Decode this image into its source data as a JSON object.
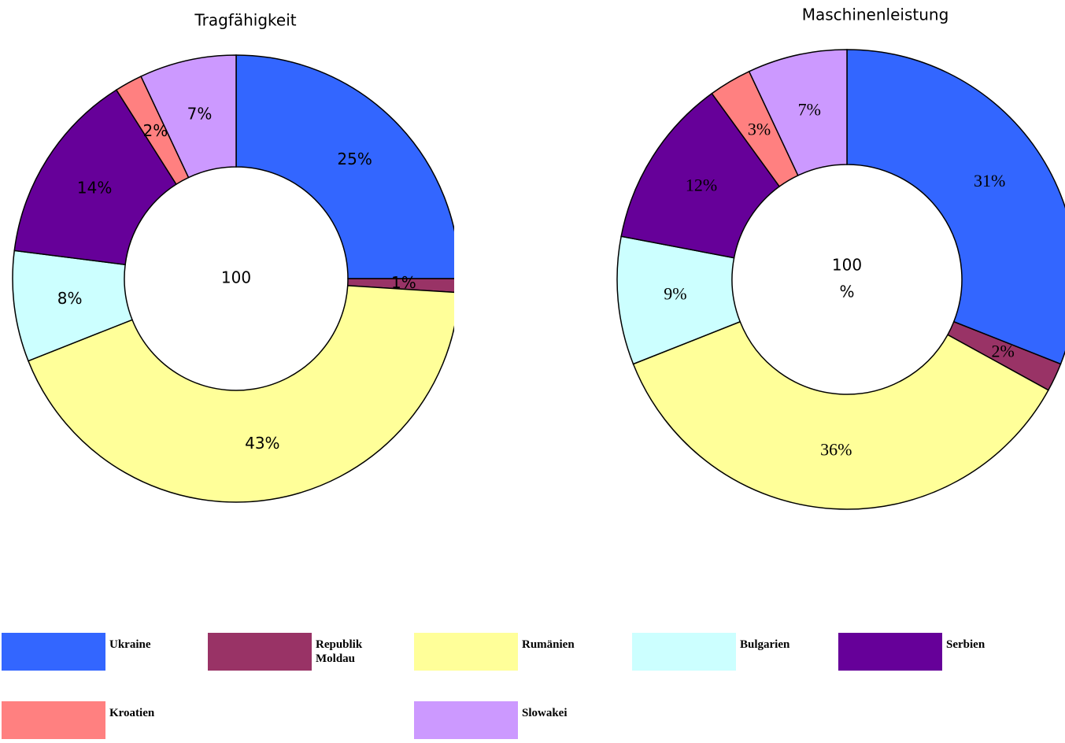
{
  "chart_data": [
    {
      "type": "donut",
      "title": "Tragfähigkeit",
      "center_label": [
        "100"
      ],
      "categories": [
        "Ukraine",
        "Republik Moldau",
        "Rumänien",
        "Bulgarien",
        "Serbien",
        "Kroatien",
        "Slowakei"
      ],
      "values": [
        25,
        1,
        43,
        8,
        14,
        2,
        7
      ],
      "value_labels": [
        "25%",
        "1%",
        "43%",
        "8%",
        "14%",
        "2%",
        "7%"
      ],
      "colors": [
        "#3366ff",
        "#993366",
        "#ffff99",
        "#ccffff",
        "#660099",
        "#ff8080",
        "#cc99ff"
      ]
    },
    {
      "type": "donut",
      "title": "Maschinenleistung",
      "center_label": [
        "100",
        "%"
      ],
      "categories": [
        "Ukraine",
        "Republik Moldau",
        "Rumänien",
        "Bulgarien",
        "Serbien",
        "Kroatien",
        "Slowakei"
      ],
      "values": [
        31,
        2,
        36,
        9,
        12,
        3,
        7
      ],
      "value_labels": [
        "31%",
        "2%",
        "36%",
        "9%",
        "12%",
        "3%",
        "7%"
      ],
      "colors": [
        "#3366ff",
        "#993366",
        "#ffff99",
        "#ccffff",
        "#660099",
        "#ff8080",
        "#cc99ff"
      ]
    }
  ]
}
